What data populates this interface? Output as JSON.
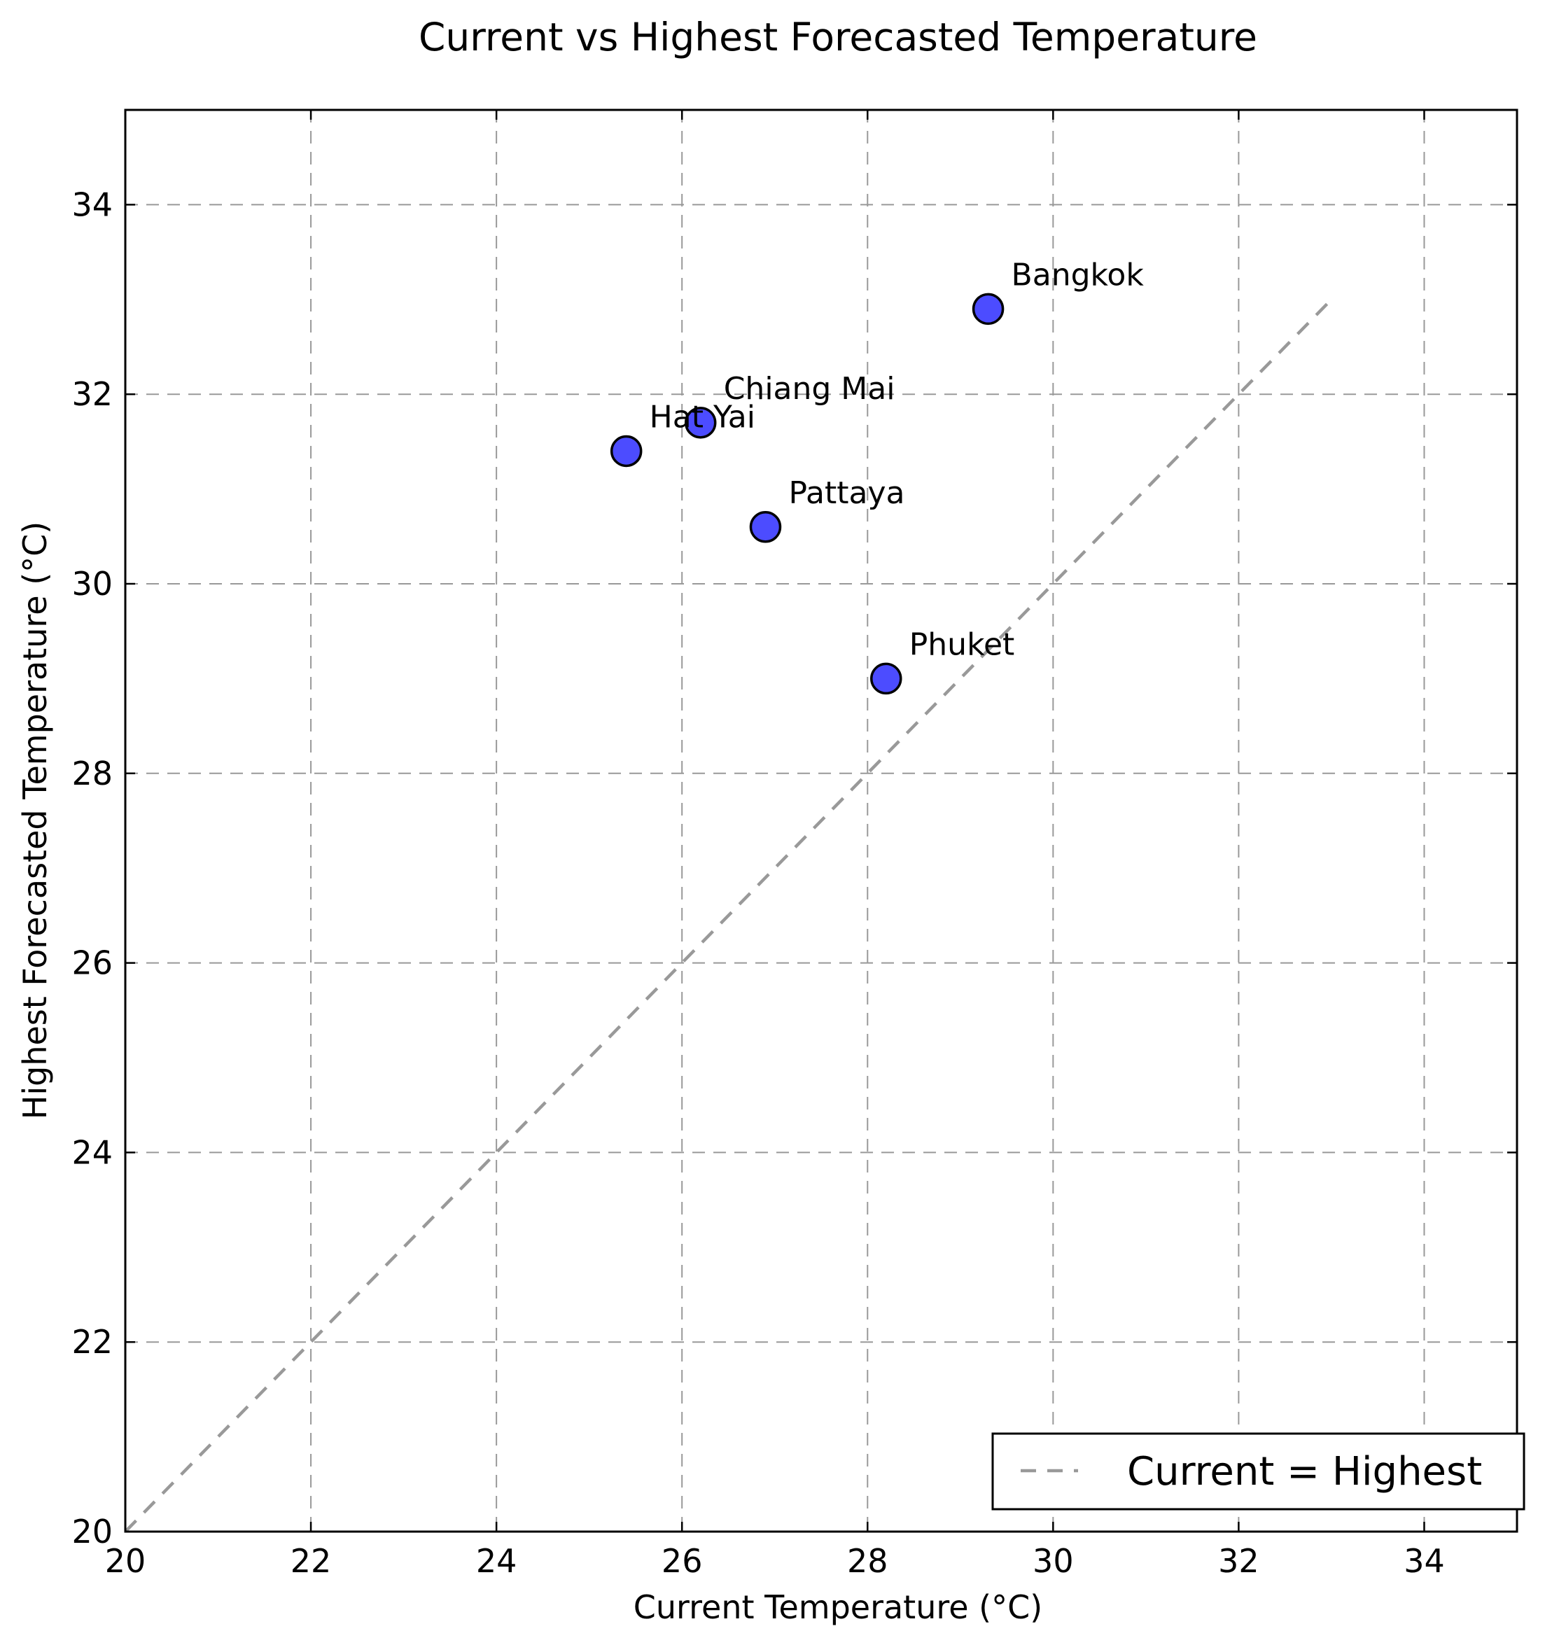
{
  "chart_data": {
    "type": "scatter",
    "title": "Current vs Highest Forecasted Temperature",
    "xlabel": "Current Temperature (°C)",
    "ylabel": "Highest Forecasted Temperature (°C)",
    "xlim": [
      20,
      35
    ],
    "ylim": [
      20,
      35
    ],
    "xticks": [
      "20",
      "22",
      "24",
      "26",
      "28",
      "30",
      "32",
      "34"
    ],
    "yticks": [
      "20",
      "22",
      "24",
      "26",
      "28",
      "30",
      "32",
      "34"
    ],
    "grid": true,
    "series": [
      {
        "marker_color": "#0000ff",
        "points": [
          {
            "label": "Bangkok",
            "x": 29.3,
            "y": 32.9
          },
          {
            "label": "Chiang Mai",
            "x": 26.2,
            "y": 31.7
          },
          {
            "label": "Hat Yai",
            "x": 25.4,
            "y": 31.4
          },
          {
            "label": "Pattaya",
            "x": 26.9,
            "y": 30.6
          },
          {
            "label": "Phuket",
            "x": 28.2,
            "y": 29.0
          }
        ]
      }
    ],
    "reference_line": {
      "name": "Current = Highest",
      "style": "dashed",
      "color": "#999999",
      "x": [
        20,
        33
      ],
      "y": [
        20,
        33
      ]
    },
    "legend": {
      "placement": "lower-right",
      "entries": [
        "Current = Highest"
      ]
    }
  }
}
